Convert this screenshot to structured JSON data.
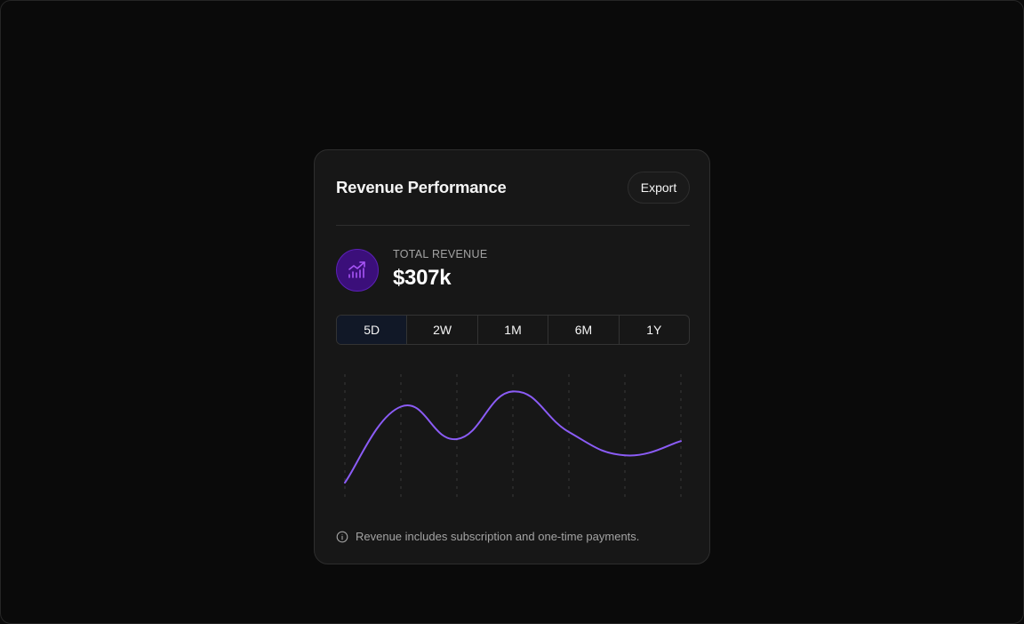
{
  "card": {
    "title": "Revenue Performance",
    "export_label": "Export"
  },
  "metric": {
    "icon": "chart-bars-trend-icon",
    "label": "TOTAL REVENUE",
    "value": "$307k"
  },
  "range_tabs": [
    {
      "label": "5D",
      "active": true
    },
    {
      "label": "2W",
      "active": false
    },
    {
      "label": "1M",
      "active": false
    },
    {
      "label": "6M",
      "active": false
    },
    {
      "label": "1Y",
      "active": false
    }
  ],
  "chart_data": {
    "type": "line",
    "x": [
      0,
      1,
      2,
      3,
      4,
      5,
      6
    ],
    "series": [
      {
        "values": [
          0.0,
          0.75,
          0.43,
          0.9,
          0.5,
          0.27,
          0.41
        ]
      }
    ],
    "grid": "vertical-dashed",
    "axes_visible": false
  },
  "colors": {
    "accent": "#8b5cf6",
    "icon_bg": "#3b0f7a",
    "card_bg": "#171717",
    "page_bg": "#0a0a0a"
  },
  "footer": {
    "icon": "info-icon",
    "note": "Revenue includes subscription and one-time payments."
  }
}
